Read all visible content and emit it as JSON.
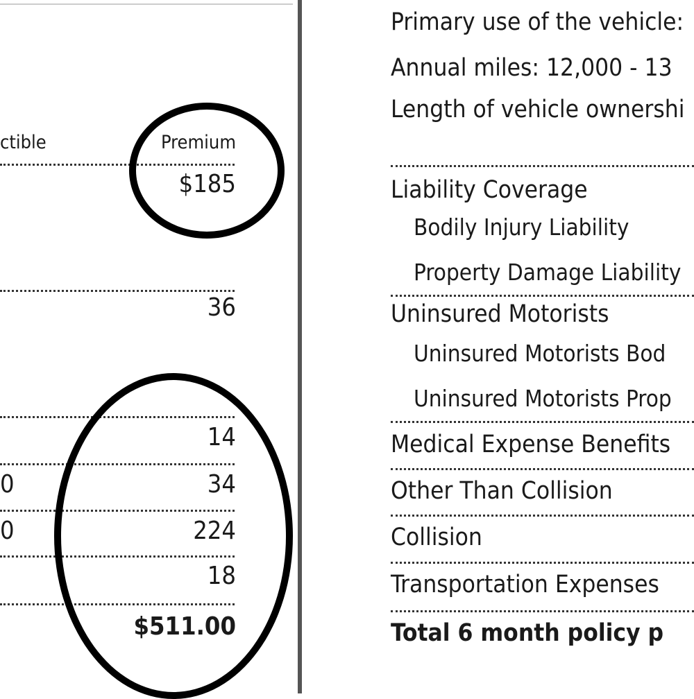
{
  "left_panel": {
    "deductible_header": "ctible",
    "premium_header": "Premium",
    "premium_values": [
      "$185",
      "36",
      "14",
      "34",
      "224",
      "18"
    ],
    "total_premium": "$511.00",
    "deductible_fragments": [
      "0",
      "0"
    ]
  },
  "right_panel": {
    "vehicle_info": [
      "Primary use of the vehicle: ",
      "Annual miles: 12,000 - 13",
      "Length of vehicle ownershi"
    ],
    "coverages": {
      "liability": "Liability Coverage",
      "bodily_injury": "Bodily Injury Liability",
      "property_damage": "Property Damage Liability",
      "uninsured": "Uninsured Motorists",
      "uninsured_bodily": "Uninsured Motorists Bod",
      "uninsured_property": "Uninsured Motorists Prop",
      "medical": "Medical Expense Benefits",
      "other_than_collision": "Other Than Collision",
      "collision": "Collision",
      "transportation": "Transportation Expenses"
    },
    "total_label": "Total 6 month policy p"
  },
  "annotation_color": "#000000"
}
